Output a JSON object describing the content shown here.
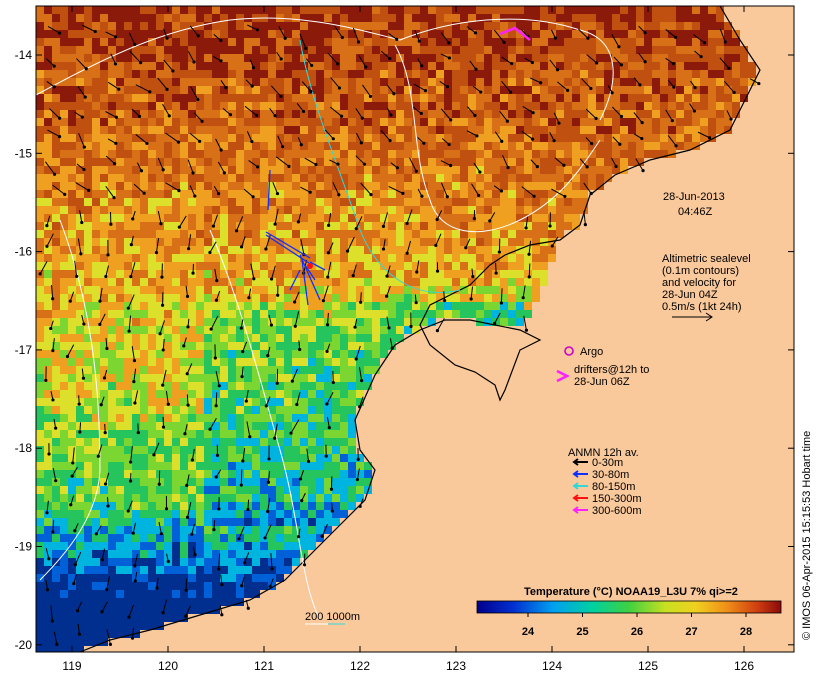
{
  "map": {
    "x_ticks": [
      "119",
      "120",
      "121",
      "122",
      "123",
      "124",
      "125",
      "126"
    ],
    "y_ticks": [
      "-14",
      "-15",
      "-16",
      "-17",
      "-18",
      "-19",
      "-20"
    ],
    "land_color": "#f9c89b",
    "ocean_palette": [
      "#002f8f",
      "#0060d8",
      "#00b4e0",
      "#26c45c",
      "#7cd632",
      "#dde02a",
      "#f0a020",
      "#d87018",
      "#c05010",
      "#8b1a0a"
    ]
  },
  "timestamp": {
    "date": "28-Jun-2013",
    "time": "04:46Z"
  },
  "altimetry_legend": {
    "lines": [
      "Altimetric sealevel",
      "(0.1m contours)",
      "and velocity for",
      "28-Jun 04Z",
      "0.5m/s (1kt 24h)"
    ]
  },
  "argo_legend": {
    "label": "Argo"
  },
  "drifters_legend": {
    "lines": [
      "drifters@12h to",
      "28-Jun 06Z"
    ]
  },
  "anmn_legend": {
    "title": "ANMN 12h av.",
    "items": [
      {
        "label": "0-30m",
        "color": "#000000"
      },
      {
        "label": "30-80m",
        "color": "#1030ff"
      },
      {
        "label": "80-150m",
        "color": "#30d8d8"
      },
      {
        "label": "150-300m",
        "color": "#ff1010"
      },
      {
        "label": "300-600m",
        "color": "#ff20ff"
      }
    ]
  },
  "colorbar": {
    "title": "Temperature (°C) NOAA19_L3U 7% qi>=2",
    "ticks": [
      "24",
      "25",
      "26",
      "27",
      "28"
    ]
  },
  "depth_legend": {
    "label": "200  1000m"
  },
  "side_credit": "© IMOS 06-Apr-2015 15:15:53 Hobart time"
}
